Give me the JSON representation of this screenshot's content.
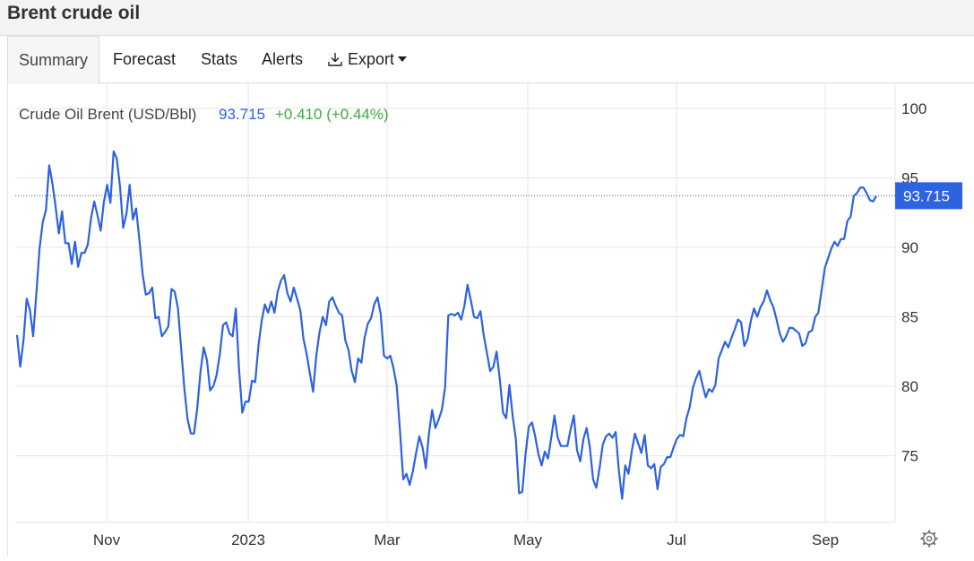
{
  "page": {
    "title": "Brent crude oil"
  },
  "tabs": [
    {
      "label": "Summary",
      "active": true
    },
    {
      "label": "Forecast"
    },
    {
      "label": "Stats"
    },
    {
      "label": "Alerts"
    },
    {
      "label": "Export",
      "icon": "download-icon"
    }
  ],
  "quote": {
    "name": "Crude Oil Brent (USD/Bbl)",
    "price": "93.715",
    "change": "+0.410 (+0.44%)"
  },
  "colors": {
    "line": "#2d62e0",
    "price": "#2d62e0",
    "change": "#3daa3d",
    "badge": "#2d62e0"
  },
  "settings_icon": "gear-icon",
  "chart_data": {
    "type": "line",
    "series": [
      {
        "values": [
          83.7,
          81.4,
          83.3,
          86.3,
          85.5,
          83.6,
          86.7,
          89.9,
          91.8,
          92.7,
          95.9,
          94.6,
          92.9,
          91.0,
          92.6,
          90.3,
          90.3,
          88.8,
          90.4,
          88.6,
          89.6,
          89.6,
          90.2,
          92.1,
          93.3,
          92.3,
          91.2,
          93.3,
          94.5,
          93.2,
          96.9,
          96.4,
          94.4,
          91.4,
          92.4,
          94.5,
          92.0,
          92.8,
          90.6,
          88.1,
          86.6,
          86.7,
          87.1,
          84.9,
          85.0,
          83.6,
          83.9,
          84.3,
          87.0,
          86.8,
          85.6,
          82.7,
          79.8,
          77.6,
          76.6,
          76.6,
          78.4,
          81.0,
          82.8,
          81.9,
          79.7,
          80.0,
          80.8,
          82.3,
          84.4,
          84.6,
          83.8,
          83.6,
          85.6,
          81.2,
          78.1,
          78.9,
          78.9,
          80.4,
          80.3,
          82.9,
          84.7,
          85.9,
          85.3,
          86.1,
          85.3,
          86.8,
          87.6,
          88.0,
          86.7,
          86.1,
          87.1,
          86.3,
          85.5,
          83.4,
          82.3,
          80.9,
          79.6,
          82.2,
          83.9,
          85.0,
          84.4,
          86.1,
          86.4,
          85.8,
          85.3,
          85.1,
          83.3,
          82.6,
          81.1,
          80.3,
          82.0,
          81.7,
          83.5,
          84.5,
          84.9,
          85.9,
          86.4,
          85.2,
          82.2,
          82.0,
          82.2,
          81.3,
          80.0,
          76.8,
          73.3,
          73.7,
          72.9,
          73.9,
          75.2,
          76.4,
          75.6,
          74.1,
          76.6,
          78.3,
          77.0,
          77.6,
          78.3,
          79.9,
          85.1,
          85.2,
          85.1,
          85.3,
          84.8,
          85.8,
          87.3,
          86.2,
          85.0,
          84.9,
          85.4,
          83.7,
          82.4,
          81.1,
          81.4,
          82.5,
          80.5,
          78.1,
          77.7,
          80.1,
          77.9,
          76.2,
          72.3,
          72.4,
          75.1,
          77.1,
          77.4,
          76.4,
          75.1,
          74.3,
          75.3,
          74.8,
          76.3,
          77.9,
          76.3,
          75.7,
          75.7,
          75.7,
          76.9,
          77.9,
          75.4,
          74.6,
          76.2,
          77.0,
          75.6,
          73.3,
          72.7,
          74.1,
          75.8,
          76.4,
          76.6,
          76.3,
          76.7,
          73.9,
          71.9,
          74.3,
          73.7,
          75.3,
          76.6,
          75.9,
          75.2,
          76.5,
          74.3,
          74.1,
          74.4,
          72.6,
          74.2,
          74.4,
          74.9,
          74.9,
          75.6,
          76.2,
          76.5,
          76.4,
          77.7,
          78.5,
          79.9,
          80.6,
          81.1,
          80.1,
          79.2,
          79.8,
          79.6,
          80.1,
          82.0,
          82.6,
          83.2,
          82.8,
          83.5,
          84.1,
          84.8,
          84.6,
          82.9,
          83.4,
          84.7,
          85.6,
          85.0,
          85.7,
          86.1,
          86.9,
          86.2,
          85.7,
          84.8,
          83.8,
          83.2,
          83.6,
          84.2,
          84.2,
          84.0,
          83.8,
          82.9,
          83.1,
          83.9,
          84.0,
          85.0,
          85.3,
          86.9,
          88.5,
          89.2,
          89.9,
          90.4,
          90.1,
          90.6,
          90.6,
          91.9,
          92.2,
          93.7,
          93.9,
          94.3,
          94.3,
          93.9,
          93.4,
          93.3,
          93.7
        ],
        "dates": "2022-09-12 to 2023-09-22 (daily trading)"
      }
    ],
    "x_tick_labels": [
      "Nov",
      "2023",
      "Mar",
      "May",
      "Jul",
      "Sep"
    ],
    "y_tick_labels": [
      "75",
      "80",
      "85",
      "90",
      "95",
      "100"
    ],
    "ylim": [
      70.2,
      101.8
    ],
    "last_value_label": "93.715",
    "grid": true,
    "axis_position": "right"
  }
}
